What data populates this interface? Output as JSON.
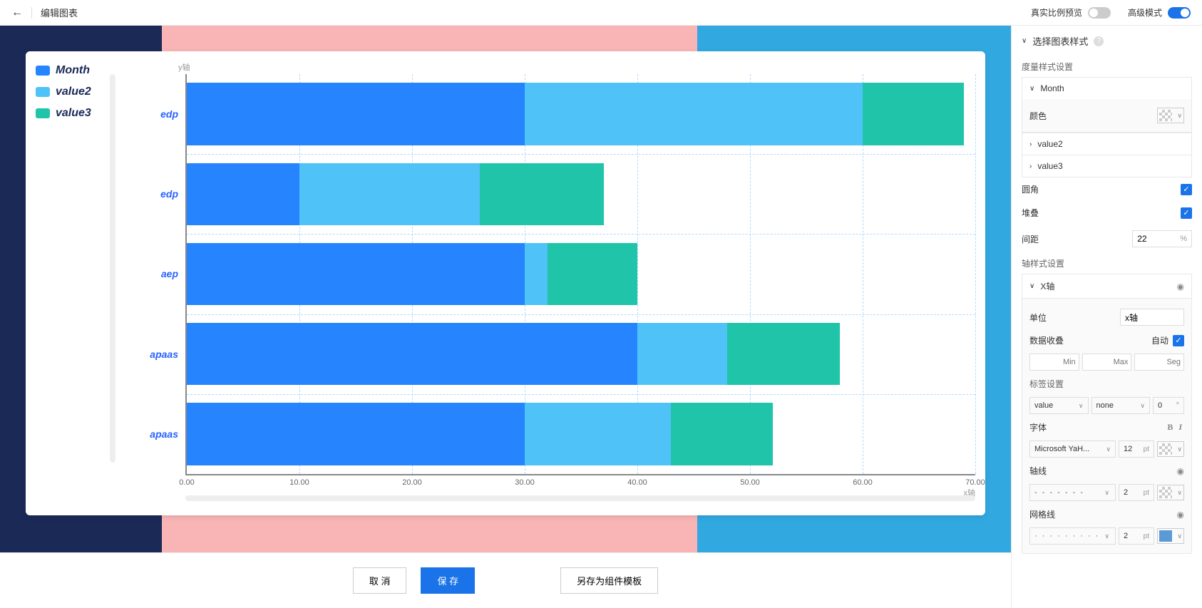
{
  "header": {
    "title": "编辑图表",
    "real_preview_label": "真实比例预览",
    "advanced_mode_label": "高级模式",
    "real_preview_on": false,
    "advanced_mode_on": true
  },
  "background": {
    "stripes": [
      {
        "color": "#1a2956",
        "width_pct": 16
      },
      {
        "color": "#f9b5b5",
        "width_pct": 53
      },
      {
        "color": "#31a8e0",
        "width_pct": 31
      }
    ]
  },
  "chart": {
    "type": "stacked-horizontal-bar",
    "y_axis_title": "y轴",
    "x_axis_title": "x轴",
    "xlim": [
      0,
      70
    ],
    "xtick_step": 10,
    "xticks": [
      "0.00",
      "10.00",
      "20.00",
      "30.00",
      "40.00",
      "50.00",
      "60.00",
      "70.00"
    ],
    "grid_color": "#b3d9ff",
    "axis_color": "#888888",
    "label_color": "#2962ff",
    "legend_font_color": "#1a2956",
    "legend_font_size": 16,
    "legend_font_style": "bold italic",
    "bar_label_font_size": 14,
    "bar_label_font_style": "bold italic",
    "bar_gap_pct": 22,
    "series": [
      {
        "name": "Month",
        "color": "#2684ff"
      },
      {
        "name": "value2",
        "color": "#4fc3f7"
      },
      {
        "name": "value3",
        "color": "#20c4a8"
      }
    ],
    "rows": [
      {
        "label": "edp",
        "values": [
          30,
          30,
          9
        ]
      },
      {
        "label": "edp",
        "values": [
          10,
          16,
          11
        ]
      },
      {
        "label": "aep",
        "values": [
          30,
          2,
          8
        ]
      },
      {
        "label": "apaas",
        "values": [
          40,
          8,
          10
        ]
      },
      {
        "label": "apaas",
        "values": [
          30,
          13,
          9
        ]
      }
    ]
  },
  "footer": {
    "cancel": "取 消",
    "save": "保 存",
    "save_as_template": "另存为组件模板"
  },
  "panel": {
    "title": "选择图表样式",
    "measure_style_label": "度量样式设置",
    "measure_items": [
      {
        "name": "Month",
        "expanded": true
      },
      {
        "name": "value2",
        "expanded": false
      },
      {
        "name": "value3",
        "expanded": false
      }
    ],
    "color_label": "颜色",
    "rounded_label": "圆角",
    "rounded_on": true,
    "stack_label": "堆叠",
    "stack_on": true,
    "gap_label": "间距",
    "gap_value": "22",
    "gap_unit": "%",
    "axis_style_label": "轴样式设置",
    "x_axis_label": "X轴",
    "unit_label": "单位",
    "unit_value": "x轴",
    "data_fold_label": "数据收叠",
    "auto_label": "自动",
    "auto_on": true,
    "range_placeholders": [
      "Min",
      "Max",
      "Seg"
    ],
    "tag_label": "标签设置",
    "tag_select1": "value",
    "tag_select2": "none",
    "tag_angle": "0",
    "tag_angle_unit": "°",
    "font_label": "字体",
    "font_family": "Microsoft YaH...",
    "font_size": "12",
    "font_unit": "pt",
    "axis_line_label": "轴线",
    "axis_line_width": "2",
    "axis_line_unit": "pt",
    "grid_line_label": "网格线",
    "grid_line_width": "2",
    "grid_line_unit": "pt",
    "grid_swatch_color": "#5a9bd5"
  }
}
